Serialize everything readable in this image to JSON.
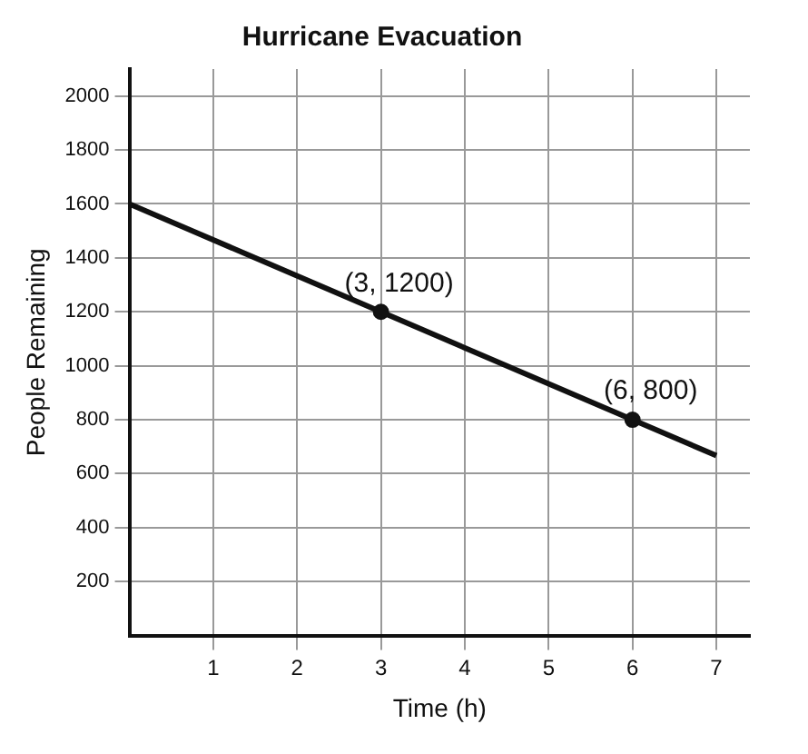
{
  "chart_data": {
    "type": "line",
    "title": "Hurricane Evacuation",
    "xlabel": "Time (h)",
    "ylabel": "People Remaining",
    "xlim": [
      0,
      7.4
    ],
    "xticks": [
      1,
      2,
      3,
      4,
      5,
      6,
      7
    ],
    "ylim": [
      0,
      2100
    ],
    "yticks": [
      200,
      400,
      600,
      800,
      1000,
      1200,
      1400,
      1600,
      1800,
      2000
    ],
    "grid": true,
    "legend": false,
    "series": [
      {
        "x": [
          0,
          3,
          6,
          7
        ],
        "values": [
          1600,
          1200,
          800,
          667
        ],
        "color": "#111111",
        "marker": "none"
      },
      {
        "type": "scatter",
        "x": [
          3,
          6
        ],
        "values": [
          1200,
          800
        ],
        "color": "#111111",
        "marker": "circle"
      }
    ],
    "annotations": [
      {
        "text": "(3, 1200)",
        "x": 3,
        "y": 1200
      },
      {
        "text": "(6, 800)",
        "x": 6,
        "y": 800
      }
    ]
  }
}
